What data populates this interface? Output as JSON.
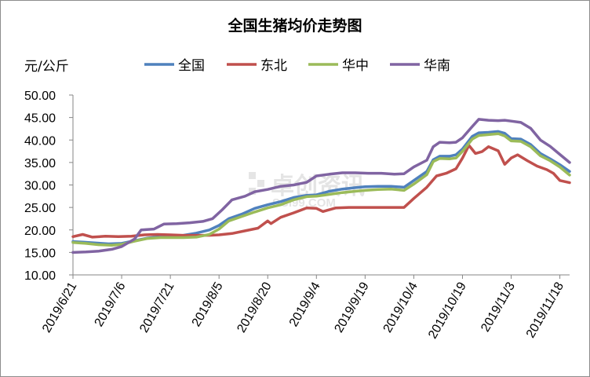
{
  "chart_data": {
    "type": "line",
    "title": "全国生猪均价走势图",
    "unit": "元/公斤",
    "ylim": [
      10,
      50
    ],
    "yticks": [
      "10.00",
      "15.00",
      "20.00",
      "25.00",
      "30.00",
      "35.00",
      "40.00",
      "45.00",
      "50.00"
    ],
    "xlim": [
      "2019/6/21",
      "2019/11/21"
    ],
    "xticks": [
      "2019/6/21",
      "2019/7/6",
      "2019/7/21",
      "2019/8/5",
      "2019/8/20",
      "2019/9/4",
      "2019/9/19",
      "2019/10/4",
      "2019/10/19",
      "2019/11/3",
      "2019/11/18"
    ],
    "grid": false,
    "legend_position": "top",
    "watermark": {
      "text": "卓创资讯",
      "sub": "SCI99.COM"
    },
    "series": [
      {
        "name": "全国",
        "color": "#4F81BD",
        "points": [
          [
            "2019/6/21",
            17.4
          ],
          [
            "2019/6/24",
            17.3
          ],
          [
            "2019/6/28",
            17.1
          ],
          [
            "2019/7/2",
            16.9
          ],
          [
            "2019/7/6",
            17.0
          ],
          [
            "2019/7/10",
            17.6
          ],
          [
            "2019/7/14",
            18.2
          ],
          [
            "2019/7/18",
            18.5
          ],
          [
            "2019/7/21",
            18.6
          ],
          [
            "2019/7/25",
            18.8
          ],
          [
            "2019/7/29",
            19.3
          ],
          [
            "2019/8/2",
            20.0
          ],
          [
            "2019/8/5",
            21.0
          ],
          [
            "2019/8/8",
            22.5
          ],
          [
            "2019/8/12",
            23.5
          ],
          [
            "2019/8/16",
            24.8
          ],
          [
            "2019/8/20",
            25.6
          ],
          [
            "2019/8/24",
            26.3
          ],
          [
            "2019/8/28",
            27.2
          ],
          [
            "2019/9/1",
            27.7
          ],
          [
            "2019/9/4",
            27.8
          ],
          [
            "2019/9/8",
            28.6
          ],
          [
            "2019/9/12",
            29.1
          ],
          [
            "2019/9/16",
            29.4
          ],
          [
            "2019/9/19",
            29.6
          ],
          [
            "2019/9/23",
            29.7
          ],
          [
            "2019/9/27",
            29.7
          ],
          [
            "2019/10/1",
            29.5
          ],
          [
            "2019/10/4",
            31.0
          ],
          [
            "2019/10/8",
            33.0
          ],
          [
            "2019/10/10",
            35.6
          ],
          [
            "2019/10/12",
            36.4
          ],
          [
            "2019/10/15",
            36.4
          ],
          [
            "2019/10/17",
            36.7
          ],
          [
            "2019/10/19",
            38.0
          ],
          [
            "2019/10/22",
            40.8
          ],
          [
            "2019/10/24",
            41.6
          ],
          [
            "2019/10/27",
            41.7
          ],
          [
            "2019/10/30",
            41.9
          ],
          [
            "2019/11/1",
            41.5
          ],
          [
            "2019/11/3",
            40.3
          ],
          [
            "2019/11/6",
            40.2
          ],
          [
            "2019/11/9",
            39.0
          ],
          [
            "2019/11/12",
            37.0
          ],
          [
            "2019/11/15",
            35.8
          ],
          [
            "2019/11/18",
            34.5
          ],
          [
            "2019/11/21",
            33.0
          ]
        ]
      },
      {
        "name": "东北",
        "color": "#C0504D",
        "points": [
          [
            "2019/6/21",
            18.5
          ],
          [
            "2019/6/24",
            19.0
          ],
          [
            "2019/6/27",
            18.4
          ],
          [
            "2019/7/1",
            18.6
          ],
          [
            "2019/7/5",
            18.5
          ],
          [
            "2019/7/9",
            18.6
          ],
          [
            "2019/7/13",
            18.9
          ],
          [
            "2019/7/17",
            19.0
          ],
          [
            "2019/7/21",
            18.9
          ],
          [
            "2019/7/25",
            18.8
          ],
          [
            "2019/7/29",
            18.8
          ],
          [
            "2019/8/2",
            18.8
          ],
          [
            "2019/8/5",
            18.9
          ],
          [
            "2019/8/9",
            19.2
          ],
          [
            "2019/8/13",
            19.8
          ],
          [
            "2019/8/17",
            20.4
          ],
          [
            "2019/8/20",
            22.0
          ],
          [
            "2019/8/21",
            21.4
          ],
          [
            "2019/8/24",
            22.8
          ],
          [
            "2019/8/28",
            23.8
          ],
          [
            "2019/9/1",
            24.9
          ],
          [
            "2019/9/4",
            24.8
          ],
          [
            "2019/9/6",
            24.1
          ],
          [
            "2019/9/10",
            24.9
          ],
          [
            "2019/9/14",
            25.0
          ],
          [
            "2019/9/19",
            25.0
          ],
          [
            "2019/9/23",
            25.0
          ],
          [
            "2019/9/27",
            25.0
          ],
          [
            "2019/10/1",
            25.0
          ],
          [
            "2019/10/4",
            27.0
          ],
          [
            "2019/10/8",
            29.5
          ],
          [
            "2019/10/11",
            32.0
          ],
          [
            "2019/10/14",
            32.6
          ],
          [
            "2019/10/17",
            33.6
          ],
          [
            "2019/10/19",
            36.0
          ],
          [
            "2019/10/21",
            38.8
          ],
          [
            "2019/10/23",
            37.0
          ],
          [
            "2019/10/25",
            37.4
          ],
          [
            "2019/10/27",
            38.5
          ],
          [
            "2019/10/30",
            37.6
          ],
          [
            "2019/11/1",
            34.6
          ],
          [
            "2019/11/3",
            36.0
          ],
          [
            "2019/11/5",
            36.7
          ],
          [
            "2019/11/8",
            35.4
          ],
          [
            "2019/11/11",
            34.2
          ],
          [
            "2019/11/14",
            33.4
          ],
          [
            "2019/11/16",
            32.6
          ],
          [
            "2019/11/18",
            31.0
          ],
          [
            "2019/11/21",
            30.5
          ]
        ]
      },
      {
        "name": "华中",
        "color": "#9BBB59",
        "points": [
          [
            "2019/6/21",
            17.2
          ],
          [
            "2019/6/25",
            17.0
          ],
          [
            "2019/6/29",
            16.7
          ],
          [
            "2019/7/3",
            16.6
          ],
          [
            "2019/7/6",
            16.8
          ],
          [
            "2019/7/10",
            17.5
          ],
          [
            "2019/7/14",
            18.1
          ],
          [
            "2019/7/18",
            18.3
          ],
          [
            "2019/7/21",
            18.3
          ],
          [
            "2019/7/25",
            18.3
          ],
          [
            "2019/7/29",
            18.4
          ],
          [
            "2019/8/2",
            19.0
          ],
          [
            "2019/8/5",
            20.2
          ],
          [
            "2019/8/8",
            22.0
          ],
          [
            "2019/8/12",
            23.0
          ],
          [
            "2019/8/16",
            24.0
          ],
          [
            "2019/8/20",
            24.9
          ],
          [
            "2019/8/24",
            25.6
          ],
          [
            "2019/8/28",
            26.7
          ],
          [
            "2019/9/1",
            27.4
          ],
          [
            "2019/9/4",
            27.5
          ],
          [
            "2019/9/8",
            27.9
          ],
          [
            "2019/9/12",
            28.3
          ],
          [
            "2019/9/16",
            28.6
          ],
          [
            "2019/9/19",
            28.8
          ],
          [
            "2019/9/23",
            29.0
          ],
          [
            "2019/9/27",
            29.1
          ],
          [
            "2019/10/1",
            28.8
          ],
          [
            "2019/10/4",
            30.2
          ],
          [
            "2019/10/8",
            32.3
          ],
          [
            "2019/10/10",
            35.2
          ],
          [
            "2019/10/12",
            35.9
          ],
          [
            "2019/10/15",
            35.8
          ],
          [
            "2019/10/17",
            36.0
          ],
          [
            "2019/10/19",
            37.5
          ],
          [
            "2019/10/22",
            40.2
          ],
          [
            "2019/10/24",
            41.0
          ],
          [
            "2019/10/27",
            41.2
          ],
          [
            "2019/10/30",
            41.4
          ],
          [
            "2019/11/1",
            40.9
          ],
          [
            "2019/11/3",
            39.8
          ],
          [
            "2019/11/6",
            39.7
          ],
          [
            "2019/11/9",
            38.5
          ],
          [
            "2019/11/12",
            36.5
          ],
          [
            "2019/11/15",
            35.4
          ],
          [
            "2019/11/18",
            34.0
          ],
          [
            "2019/11/21",
            32.2
          ]
        ]
      },
      {
        "name": "华南",
        "color": "#8064A2",
        "points": [
          [
            "2019/6/21",
            15.0
          ],
          [
            "2019/6/25",
            15.1
          ],
          [
            "2019/6/29",
            15.3
          ],
          [
            "2019/7/3",
            15.7
          ],
          [
            "2019/7/6",
            16.3
          ],
          [
            "2019/7/10",
            18.0
          ],
          [
            "2019/7/12",
            20.0
          ],
          [
            "2019/7/16",
            20.2
          ],
          [
            "2019/7/19",
            21.3
          ],
          [
            "2019/7/23",
            21.4
          ],
          [
            "2019/7/27",
            21.6
          ],
          [
            "2019/7/31",
            21.9
          ],
          [
            "2019/8/3",
            22.5
          ],
          [
            "2019/8/6",
            24.5
          ],
          [
            "2019/8/9",
            26.7
          ],
          [
            "2019/8/13",
            27.5
          ],
          [
            "2019/8/16",
            28.5
          ],
          [
            "2019/8/20",
            29.0
          ],
          [
            "2019/8/24",
            29.7
          ],
          [
            "2019/8/28",
            30.0
          ],
          [
            "2019/9/1",
            30.6
          ],
          [
            "2019/9/4",
            32.0
          ],
          [
            "2019/9/8",
            32.4
          ],
          [
            "2019/9/12",
            32.7
          ],
          [
            "2019/9/16",
            32.7
          ],
          [
            "2019/9/20",
            32.6
          ],
          [
            "2019/9/24",
            32.6
          ],
          [
            "2019/9/28",
            32.4
          ],
          [
            "2019/10/1",
            32.5
          ],
          [
            "2019/10/4",
            34.0
          ],
          [
            "2019/10/8",
            35.5
          ],
          [
            "2019/10/10",
            38.5
          ],
          [
            "2019/10/12",
            39.5
          ],
          [
            "2019/10/15",
            39.4
          ],
          [
            "2019/10/17",
            39.5
          ],
          [
            "2019/10/19",
            40.5
          ],
          [
            "2019/10/22",
            43.0
          ],
          [
            "2019/10/24",
            44.6
          ],
          [
            "2019/10/27",
            44.4
          ],
          [
            "2019/10/30",
            44.3
          ],
          [
            "2019/11/1",
            44.4
          ],
          [
            "2019/11/3",
            44.2
          ],
          [
            "2019/11/6",
            43.9
          ],
          [
            "2019/11/9",
            42.6
          ],
          [
            "2019/11/12",
            40.0
          ],
          [
            "2019/11/15",
            38.6
          ],
          [
            "2019/11/18",
            36.8
          ],
          [
            "2019/11/21",
            35.0
          ]
        ]
      }
    ]
  }
}
